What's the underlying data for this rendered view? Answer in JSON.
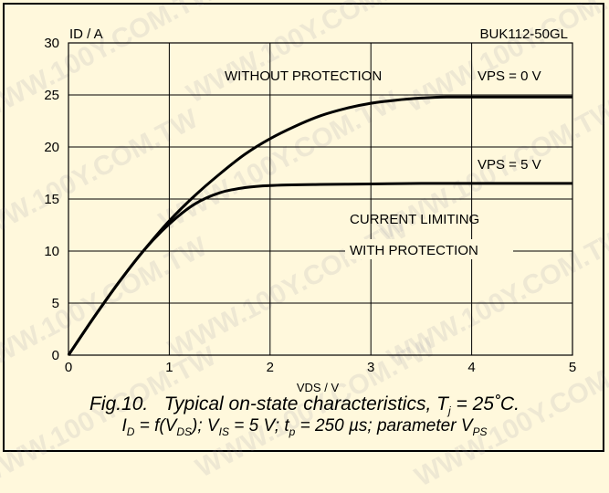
{
  "chart_data": {
    "type": "line",
    "device": "BUK112-50GL",
    "xlabel": "VDS / V",
    "ylabel": "ID / A",
    "xlim": [
      0,
      5
    ],
    "ylim": [
      0,
      30
    ],
    "xticks": [
      0,
      1,
      2,
      3,
      4,
      5
    ],
    "yticks": [
      0,
      5,
      10,
      15,
      20,
      25,
      30
    ],
    "grid": true,
    "series": [
      {
        "name": "VPS = 0 V",
        "x": [
          0,
          0.25,
          0.5,
          0.75,
          1.0,
          1.25,
          1.5,
          1.75,
          2.0,
          2.25,
          2.5,
          2.75,
          3.0,
          3.25,
          3.5,
          3.75,
          4.0,
          4.5,
          5.0
        ],
        "y": [
          0,
          3.6,
          7.0,
          10.1,
          12.9,
          15.3,
          17.4,
          19.3,
          20.8,
          22.0,
          23.0,
          23.7,
          24.2,
          24.5,
          24.7,
          24.8,
          24.8,
          24.8,
          24.8
        ]
      },
      {
        "name": "VPS = 5 V",
        "x": [
          0,
          0.25,
          0.5,
          0.75,
          1.0,
          1.25,
          1.5,
          1.75,
          2.0,
          2.5,
          3.0,
          3.5,
          4.0,
          4.5,
          5.0
        ],
        "y": [
          0,
          3.6,
          7.0,
          10.1,
          12.6,
          14.5,
          15.6,
          16.1,
          16.3,
          16.4,
          16.45,
          16.5,
          16.5,
          16.5,
          16.5
        ]
      }
    ],
    "annotations": [
      "WITHOUT PROTECTION",
      "CURRENT LIMITING",
      "WITH PROTECTION"
    ],
    "caption": {
      "line1": "Fig.10.   Typical on-state characteristics, Tj = 25˚C.",
      "line2": "ID = f(VDS); VIS = 5 V; tp = 250 µs; parameter VPS"
    }
  },
  "watermark": "WWW.100Y.COM.TW"
}
